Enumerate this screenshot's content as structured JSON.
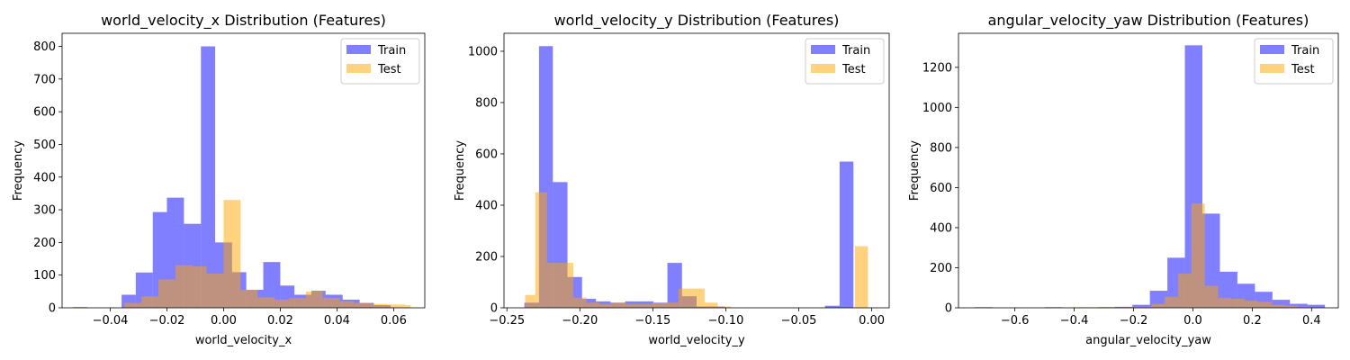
{
  "chart_data": [
    {
      "type": "histogram",
      "title": "world_velocity_x Distribution (Features)",
      "xlabel": "world_velocity_x",
      "ylabel": "Frequency",
      "xlim": [
        -0.057,
        0.071
      ],
      "ylim": [
        0,
        840
      ],
      "xticks": [
        -0.04,
        -0.02,
        0.0,
        0.02,
        0.04,
        0.06
      ],
      "xtick_labels": [
        "−0.04",
        "−0.02",
        "0.00",
        "0.02",
        "0.04",
        "0.06"
      ],
      "yticks": [
        0,
        100,
        200,
        300,
        400,
        500,
        600,
        700,
        800
      ],
      "ytick_labels": [
        "0",
        "100",
        "200",
        "300",
        "400",
        "500",
        "600",
        "700",
        "800"
      ],
      "legend_position": "top-right",
      "series": [
        {
          "name": "Train",
          "color": "#0000ff",
          "opacity": 0.5,
          "bin_edges": [
            -0.053,
            -0.048,
            -0.042,
            -0.036,
            -0.031,
            -0.025,
            -0.02,
            -0.014,
            -0.008,
            -0.003,
            0.003,
            0.008,
            0.014,
            0.02,
            0.025,
            0.031,
            0.036,
            0.042,
            0.048,
            0.053,
            0.059,
            0.065
          ],
          "counts": [
            2,
            0,
            0,
            40,
            108,
            293,
            337,
            257,
            800,
            200,
            109,
            55,
            140,
            68,
            40,
            52,
            40,
            25,
            15,
            8,
            0
          ]
        },
        {
          "name": "Test",
          "color": "#ffa500",
          "opacity": 0.5,
          "bin_edges": [
            -0.035,
            -0.029,
            -0.023,
            -0.017,
            -0.011,
            -0.006,
            0.0,
            0.006,
            0.012,
            0.018,
            0.023,
            0.029,
            0.035,
            0.041,
            0.046,
            0.052,
            0.058,
            0.064,
            0.066
          ],
          "counts": [
            15,
            35,
            87,
            130,
            127,
            105,
            330,
            55,
            32,
            25,
            30,
            50,
            30,
            20,
            15,
            12,
            10,
            8
          ]
        }
      ]
    },
    {
      "type": "histogram",
      "title": "world_velocity_y Distribution (Features)",
      "xlabel": "world_velocity_y",
      "ylabel": "Frequency",
      "xlim": [
        -0.252,
        0.012
      ],
      "ylim": [
        0,
        1070
      ],
      "xticks": [
        -0.25,
        -0.2,
        -0.15,
        -0.1,
        -0.05,
        0.0
      ],
      "xtick_labels": [
        "−0.25",
        "−0.20",
        "−0.15",
        "−0.10",
        "−0.05",
        "0.00"
      ],
      "yticks": [
        0,
        200,
        400,
        600,
        800,
        1000
      ],
      "ytick_labels": [
        "0",
        "200",
        "400",
        "600",
        "800",
        "1000"
      ],
      "legend_position": "top-right",
      "series": [
        {
          "name": "Train",
          "color": "#0000ff",
          "opacity": 0.5,
          "bin_edges": [
            -0.238,
            -0.228,
            -0.2185,
            -0.2085,
            -0.1985,
            -0.189,
            -0.179,
            -0.169,
            -0.1595,
            -0.1495,
            -0.14,
            -0.13,
            -0.12,
            -0.1105,
            -0.1005,
            -0.091,
            -0.081,
            -0.071,
            -0.0615,
            -0.0515,
            -0.042,
            -0.032,
            -0.022,
            -0.0125,
            -0.0025
          ],
          "counts": [
            20,
            1020,
            490,
            120,
            35,
            25,
            20,
            25,
            25,
            20,
            175,
            45,
            5,
            5,
            0,
            0,
            0,
            0,
            0,
            0,
            0,
            8,
            570,
            0
          ]
        },
        {
          "name": "Test",
          "color": "#ffa500",
          "opacity": 0.5,
          "bin_edges": [
            -0.2375,
            -0.2305,
            -0.2225,
            -0.2135,
            -0.2045,
            -0.1955,
            -0.1865,
            -0.1775,
            -0.1685,
            -0.1595,
            -0.1505,
            -0.1415,
            -0.1325,
            -0.1235,
            -0.1145,
            -0.1055,
            -0.0965,
            -0.0885,
            -0.0805,
            -0.0025
          ],
          "counts": [
            50,
            450,
            175,
            175,
            40,
            20,
            15,
            20,
            15,
            15,
            18,
            20,
            75,
            75,
            20,
            5,
            0,
            0,
            0
          ]
        },
        {
          "name": "",
          "color": "#ffa500",
          "opacity": 0.5,
          "bin_edges": [
            -0.0115,
            -0.0025
          ],
          "counts": [
            240
          ]
        }
      ]
    },
    {
      "type": "histogram",
      "title": "angular_velocity_yaw Distribution (Features)",
      "xlabel": "angular_velocity_yaw",
      "ylabel": "Frequency",
      "xlim": [
        -0.79,
        0.49
      ],
      "ylim": [
        0,
        1370
      ],
      "xticks": [
        -0.6,
        -0.4,
        -0.2,
        0.0,
        0.2,
        0.4
      ],
      "xtick_labels": [
        "−0.6",
        "−0.4",
        "−0.2",
        "0.0",
        "0.2",
        "0.4"
      ],
      "yticks": [
        0,
        200,
        400,
        600,
        800,
        1000,
        1200
      ],
      "ytick_labels": [
        "0",
        "200",
        "400",
        "600",
        "800",
        "1000",
        "1200"
      ],
      "legend_position": "top-right",
      "series": [
        {
          "name": "Train",
          "color": "#0000ff",
          "opacity": 0.5,
          "bin_edges": [
            -0.735,
            -0.676,
            -0.617,
            -0.558,
            -0.499,
            -0.44,
            -0.381,
            -0.322,
            -0.263,
            -0.204,
            -0.145,
            -0.086,
            -0.027,
            0.032,
            0.091,
            0.15,
            0.209,
            0.268,
            0.327,
            0.386,
            0.445
          ],
          "counts": [
            3,
            0,
            0,
            0,
            3,
            0,
            2,
            3,
            5,
            15,
            85,
            250,
            1310,
            470,
            180,
            120,
            80,
            40,
            20,
            15
          ]
        },
        {
          "name": "Test",
          "color": "#ffa500",
          "opacity": 0.5,
          "bin_edges": [
            -0.455,
            -0.41,
            -0.365,
            -0.32,
            -0.275,
            -0.23,
            -0.185,
            -0.14,
            -0.095,
            -0.05,
            -0.005,
            0.04,
            0.085,
            0.13,
            0.175,
            0.22,
            0.265,
            0.31,
            0.355,
            0.4
          ],
          "counts": [
            0,
            3,
            2,
            4,
            3,
            5,
            5,
            20,
            55,
            170,
            520,
            110,
            50,
            45,
            35,
            30,
            15,
            10,
            5
          ]
        }
      ]
    }
  ]
}
